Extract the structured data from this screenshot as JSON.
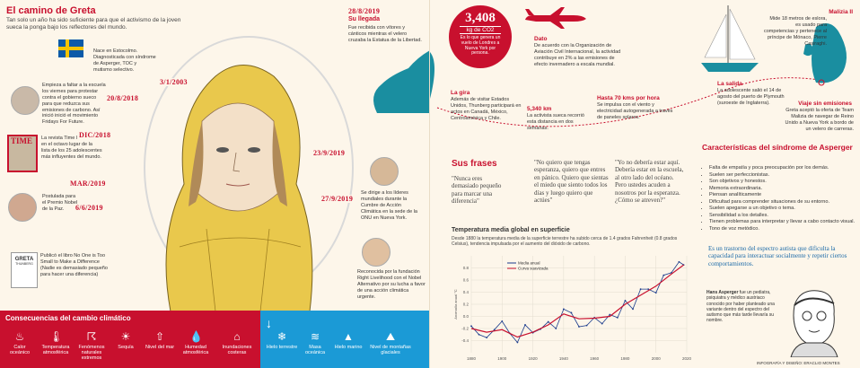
{
  "left": {
    "title": "El camino de Greta",
    "subtitle": "Tan solo un año ha sido suficiente para que el activismo de la joven sueca la ponga bajo los reflectores del mundo.",
    "timeline": [
      {
        "date": "3/1/2003",
        "text": "Nace en Estocolmo. Diagnosticada con síndrome de Asperger, TOC y mutismo selectivo."
      },
      {
        "date": "20/8/2018",
        "text": "Empieza a faltar a la escuela los viernes para protestar contra el gobierno sueco para que reduzca sus emisiones de carbono. Así inició inició el movimiento Fridays For Future."
      },
      {
        "date": "DIC/2018",
        "text": "La revista Time la coloca en el octavo lugar de la lista de los 25 adolescentes más influyentes del mundo."
      },
      {
        "date": "MAR/2019",
        "text": "Postulada para el Premio Nobel de la Paz."
      },
      {
        "date": "6/6/2019",
        "text": "Publicó el libro No One is Too Small to Make a Difference (Nadie es demasiado pequeño para hacer una diferencia)"
      },
      {
        "date": "28/8/2019",
        "heading": "Su llegada",
        "text": "Fue recibida con vítores y cánticos mientras el velero cruzaba la Estatua de la Libertad."
      },
      {
        "date": "23/9/2019",
        "text": "Se dirige a los líderes mundiales durante la Cumbre de Acción Climática en la sede de la ONU en Nueva York."
      },
      {
        "date": "27/9/2019",
        "text": "Reconocida por la fundación Right Livelihood con el Nobel Alternativo por su lucha a favor de una acción climática urgente."
      }
    ],
    "book_title": "GRETA",
    "book_sub": "THUNBERG",
    "magazine": "TIME",
    "consequences_title": "Consecuencias del cambio climático",
    "consequences_red": [
      "Calor oceánico",
      "Temperatura atmosférica",
      "Fenómenos naturales extremos",
      "Sequía",
      "Nivel del mar",
      "Humedad atmosférica",
      "Inundaciones costeras"
    ],
    "consequences_blue": [
      "Hielo terrestre",
      "Masa oceánica",
      "Hielo marino",
      "Nivel de montañas glaciales"
    ]
  },
  "right": {
    "co2_value": "3,408",
    "co2_unit": "kg de CO2",
    "co2_text": "Es lo que genera un vuelo de Londres a Nueva York por persona.",
    "dato_title": "Dato",
    "dato_text": "De acuerdo con la Organización de Aviación Civil Internacional, la actividad contribuye en 2% a las emisiones de efecto invernadero a escala mundial.",
    "malizia_title": "Malizia II",
    "malizia_text": "Mide 18 metros de eslora, es usado para competencias y pertenece al príncipe de Mónaco, Pierre Casiraghi.",
    "gira_title": "La gira",
    "gira_text": "Además de visitar Estados Unidos, Thunberg participará en actos en Canadá, México, Centroamérica y Chile.",
    "km_title": "5,340 km",
    "km_text": "La activista sueca recorrió esta distancia en dos semanas.",
    "speed_title": "Hasta 70 kms por hora",
    "speed_text": "Se impulsa con el viento y electricidad autogenerada a través de paneles solares.",
    "salida_title": "La salida",
    "salida_text": "La adolescente salió el 14 de agosto del puerto de Plymouth (suroeste de Inglaterra).",
    "viaje_title": "Viaje sin emisiones",
    "viaje_text": "Greta aceptó la oferta de Team Malizia de navegar de Reino Unido a Nueva York a bordo de un velero de carreras.",
    "frases_title": "Sus frases",
    "frases": [
      "\"Nunca eres demasiado pequeño para marcar una diferencia\"",
      "\"No quiero que tengas esperanza, quiero que entres en pánico. Quiero que sientas el miedo que siento todos los días y luego quiero que actúes\"",
      "\"Yo no debería estar aquí. Debería estar en la escuela, al otro lado del océano. Pero ustedes acuden a nosotros por la esperanza. ¿Cómo se atreven?\""
    ],
    "asperger_title": "Características del síndrome de Asperger",
    "asperger_list": [
      "Falta de empatía y poca preocupación por los demás.",
      "Suelen ser perfeccionistas.",
      "Son objetivos y honestos.",
      "Memoria extraordinaria.",
      "Piensan analíticamente",
      "Dificultad para comprender situaciones de su entorno.",
      "Suelen apegarse a un objetivo o tema.",
      "Sensibilidad a los detalles.",
      "Tienen problemas para interpretar y llevar a cabo contacto visual.",
      "Tono de voz metódico."
    ],
    "asperger_quote": "Es un trastorno del espectro autista que dificulta la capacidad para interactuar socialmente y repetir ciertos comportamientos.",
    "hans_title": "Hans Asperger",
    "hans_text": "fue un pediatra, psiquiatra y médico austriaco conocido por haber planteado una variante dentro del espectro del autismo que más tarde llevaría su nombre.",
    "credit": "INFOGRAFÍA Y DISEÑO: ERACLIO MONTES",
    "chart_caption": "Temperatura media global en superficie",
    "chart_desc": "Desde 1880 la temperatura media de la superficie terrestre ha subido cerca de 1.4 grados Fahrenheit (0.8 grados Celsius), tendencia impulsada por el aumento del dióxido de carbono."
  },
  "chart_data": {
    "type": "line",
    "title": "Temperatura media global en superficie",
    "ylabel": "Anomalía anual °C",
    "xlim": [
      1880,
      2020
    ],
    "ylim": [
      -0.6,
      1.0
    ],
    "x_ticks": [
      1880,
      1900,
      1920,
      1940,
      1960,
      1980,
      2000,
      2020
    ],
    "y_ticks": [
      -0.4,
      -0.2,
      0.0,
      0.2,
      0.4,
      0.6,
      0.8
    ],
    "series": [
      {
        "name": "Media anual",
        "color": "#1a3b8c",
        "x": [
          1880,
          1885,
          1890,
          1895,
          1900,
          1905,
          1910,
          1915,
          1920,
          1925,
          1930,
          1935,
          1940,
          1945,
          1950,
          1955,
          1960,
          1965,
          1970,
          1975,
          1980,
          1985,
          1990,
          1995,
          2000,
          2005,
          2010,
          2015,
          2018
        ],
        "values": [
          -0.16,
          -0.3,
          -0.35,
          -0.22,
          -0.08,
          -0.28,
          -0.43,
          -0.14,
          -0.27,
          -0.21,
          -0.09,
          -0.2,
          0.12,
          0.06,
          -0.17,
          -0.15,
          -0.02,
          -0.12,
          0.03,
          -0.02,
          0.26,
          0.12,
          0.45,
          0.45,
          0.39,
          0.68,
          0.72,
          0.9,
          0.85
        ]
      },
      {
        "name": "Curva suavizada",
        "color": "#c8102e",
        "x": [
          1880,
          1890,
          1900,
          1910,
          1920,
          1930,
          1940,
          1950,
          1960,
          1970,
          1980,
          1990,
          2000,
          2010,
          2018
        ],
        "values": [
          -0.2,
          -0.26,
          -0.22,
          -0.34,
          -0.26,
          -0.14,
          0.04,
          -0.04,
          -0.03,
          0.0,
          0.2,
          0.35,
          0.5,
          0.7,
          0.85
        ]
      }
    ]
  }
}
